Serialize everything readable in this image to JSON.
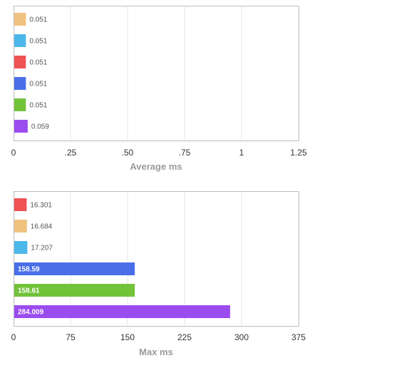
{
  "chart_data": [
    {
      "type": "bar",
      "orientation": "horizontal",
      "xlabel": "Average ms",
      "xlim": [
        0,
        1.25
      ],
      "xticks": [
        "0",
        ".25",
        ".50",
        ".75",
        "1",
        "1.25"
      ],
      "grid": true,
      "bars": [
        {
          "value": 0.051,
          "label": "0.051",
          "color": "#f0c27f"
        },
        {
          "value": 0.051,
          "label": "0.051",
          "color": "#4cb8ea"
        },
        {
          "value": 0.051,
          "label": "0.051",
          "color": "#ee5253"
        },
        {
          "value": 0.051,
          "label": "0.051",
          "color": "#4a6ee8"
        },
        {
          "value": 0.051,
          "label": "0.051",
          "color": "#72c23a"
        },
        {
          "value": 0.059,
          "label": "0.059",
          "color": "#9a4cef"
        }
      ]
    },
    {
      "type": "bar",
      "orientation": "horizontal",
      "xlabel": "Max ms",
      "xlim": [
        0,
        375
      ],
      "xticks": [
        "0",
        "75",
        "150",
        "225",
        "300",
        "375"
      ],
      "grid": true,
      "bars": [
        {
          "value": 16.301,
          "label": "16.301",
          "color": "#ee5253"
        },
        {
          "value": 16.684,
          "label": "16.684",
          "color": "#f0c27f"
        },
        {
          "value": 17.207,
          "label": "17.207",
          "color": "#4cb8ea"
        },
        {
          "value": 158.59,
          "label": "158.59",
          "color": "#4a6ee8"
        },
        {
          "value": 158.61,
          "label": "158.61",
          "color": "#72c23a"
        },
        {
          "value": 284.009,
          "label": "284.009",
          "color": "#9a4cef"
        }
      ]
    }
  ]
}
